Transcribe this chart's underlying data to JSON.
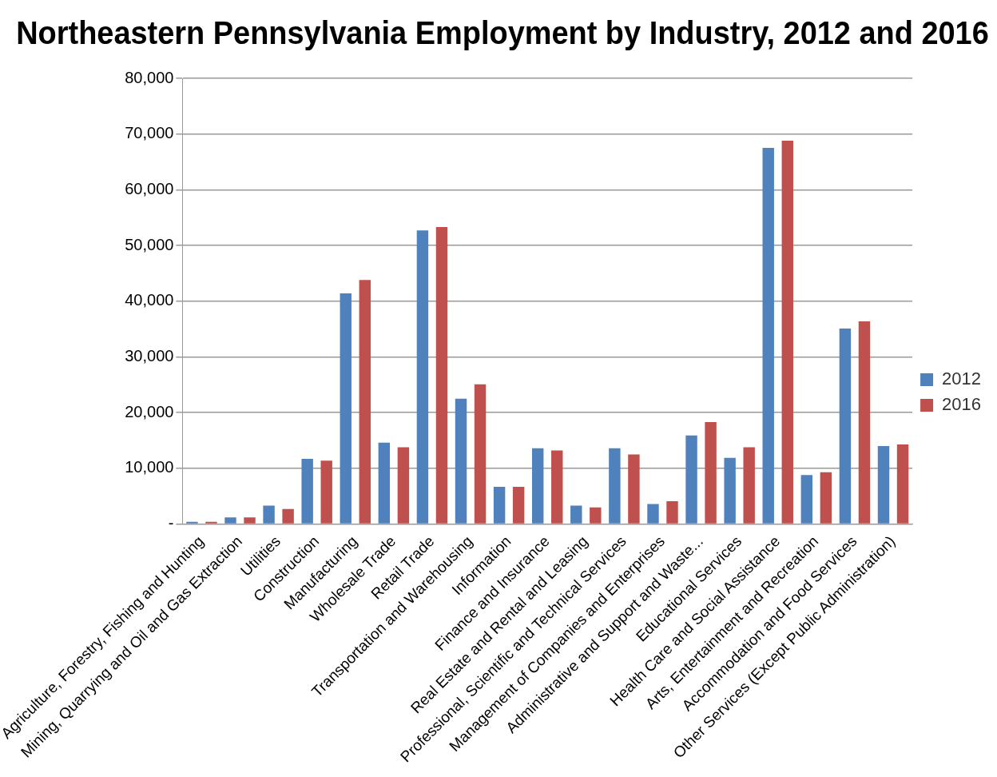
{
  "chart_data": {
    "type": "bar",
    "title": "Northeastern Pennsylvania Employment by Industry, 2012 and 2016",
    "categories": [
      "Agriculture, Forestry, Fishing and Hunting",
      "Mining, Quarrying and Oil and Gas Extraction",
      "Utilities",
      "Construction",
      "Manufacturing",
      "Wholesale Trade",
      "Retail Trade",
      "Transportation and Warehousing",
      "Information",
      "Finance and Insurance",
      "Real Estate and Rental and Leasing",
      "Professional, Scientific and Technical Services",
      "Management of Companies and Enterprises",
      "Administrative and Support and Waste...",
      "Educational Services",
      "Health Care and Social Assistance",
      "Arts, Entertainment and Recreation",
      "Accommodation and Food Services",
      "Other Services (Except Public Administration)"
    ],
    "series": [
      {
        "name": "2012",
        "color": "#4f81bd",
        "values": [
          400,
          1200,
          3300,
          11700,
          41400,
          14600,
          52700,
          22500,
          6700,
          13600,
          3300,
          13600,
          3600,
          15900,
          11900,
          67500,
          8800,
          35100,
          14000
        ]
      },
      {
        "name": "2016",
        "color": "#c0504d",
        "values": [
          400,
          1200,
          2700,
          11400,
          43800,
          13800,
          53300,
          25100,
          6700,
          13200,
          3000,
          12500,
          4100,
          18300,
          13800,
          68800,
          9300,
          36400,
          14300
        ]
      }
    ],
    "ylim": [
      0,
      80000
    ],
    "yticks": [
      {
        "value": 0,
        "label": "-"
      },
      {
        "value": 10000,
        "label": "10,000"
      },
      {
        "value": 20000,
        "label": "20,000"
      },
      {
        "value": 30000,
        "label": "30,000"
      },
      {
        "value": 40000,
        "label": "40,000"
      },
      {
        "value": 50000,
        "label": "50,000"
      },
      {
        "value": 60000,
        "label": "60,000"
      },
      {
        "value": 70000,
        "label": "70,000"
      },
      {
        "value": 80000,
        "label": "80,000"
      }
    ],
    "grid": "y",
    "legend": "right"
  }
}
